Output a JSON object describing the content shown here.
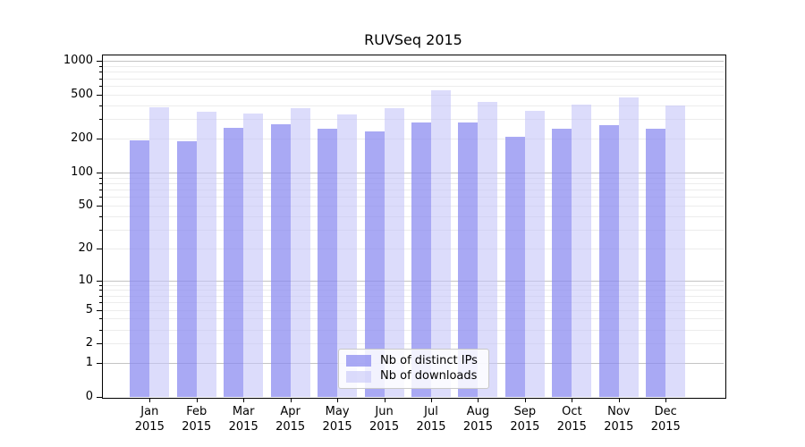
{
  "chart_data": {
    "type": "bar",
    "title": "RUVSeq 2015",
    "categories": [
      "Jan",
      "Feb",
      "Mar",
      "Apr",
      "May",
      "Jun",
      "Jul",
      "Aug",
      "Sep",
      "Oct",
      "Nov",
      "Dec"
    ],
    "year_label": "2015",
    "series": [
      {
        "name": "Nb of distinct IPs",
        "key": "distinct-ips",
        "color": "#8888f0",
        "alpha": 0.72,
        "values": [
          193,
          190,
          250,
          271,
          249,
          234,
          282,
          283,
          211,
          245,
          266,
          245
        ]
      },
      {
        "name": "Nb of downloads",
        "key": "downloads",
        "color": "#c4c4f8",
        "alpha": 0.6,
        "values": [
          388,
          354,
          339,
          381,
          332,
          379,
          548,
          432,
          355,
          408,
          470,
          398
        ]
      }
    ],
    "yscale": "log1p",
    "ylim": [
      0,
      1140
    ],
    "yticks": [
      0,
      1,
      2,
      5,
      10,
      20,
      50,
      100,
      200,
      500,
      1000
    ],
    "major_gridlines": [
      1,
      10,
      100,
      1000
    ],
    "minor_gridlines": [
      2,
      3,
      4,
      5,
      6,
      7,
      8,
      9,
      20,
      30,
      40,
      50,
      60,
      70,
      80,
      90,
      200,
      300,
      400,
      500,
      600,
      700,
      800,
      900
    ],
    "grid": true,
    "legend_position": "lower center"
  },
  "colors": {
    "background": "#ffffff",
    "axis": "#000000",
    "grid_major": "#c4c4c4",
    "grid_minor": "#ececec",
    "legend_border": "#c9c9c9"
  }
}
